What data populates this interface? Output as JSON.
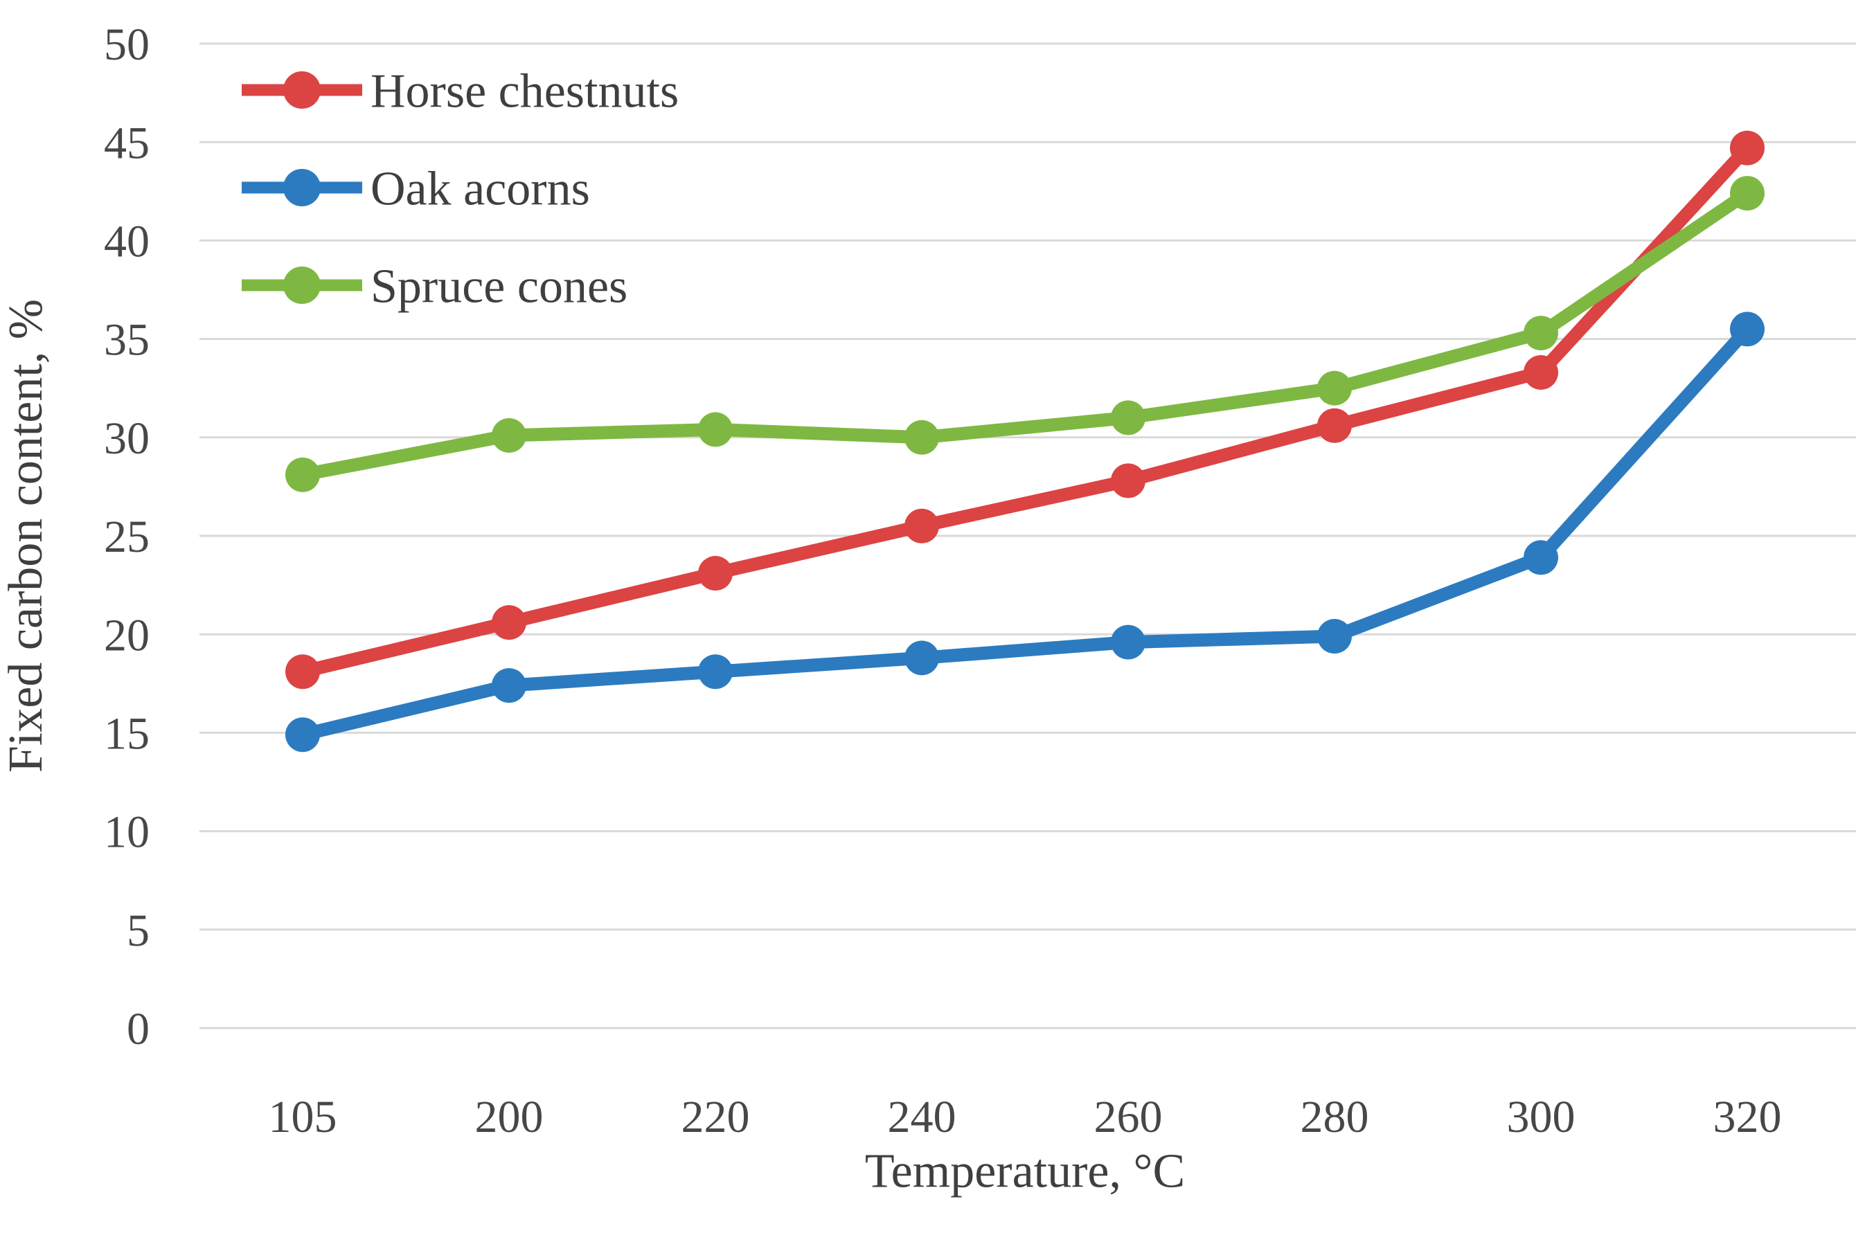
{
  "figure": {
    "background": "#FFFFFF",
    "gridline_color": "#D9D9D9",
    "tick_color": "#474747",
    "text_color": "#3F3F3F"
  },
  "chart_data": {
    "type": "line",
    "title": "",
    "xlabel": "Temperature, °C",
    "ylabel": "Fixed carbon content, %",
    "categories": [
      "105",
      "200",
      "220",
      "240",
      "260",
      "280",
      "300",
      "320"
    ],
    "series": [
      {
        "name": "Horse chestnuts",
        "color": "#DC4343",
        "marker": "circle",
        "values": [
          18.1,
          20.6,
          23.1,
          25.5,
          27.8,
          30.6,
          33.3,
          44.7
        ]
      },
      {
        "name": "Oak acorns",
        "color": "#2C7BC0",
        "marker": "circle",
        "values": [
          14.9,
          17.4,
          18.1,
          18.8,
          19.6,
          19.9,
          23.9,
          35.5
        ]
      },
      {
        "name": "Spruce cones",
        "color": "#7EB842",
        "marker": "circle",
        "values": [
          28.1,
          30.1,
          30.4,
          30.0,
          31.0,
          32.5,
          35.3,
          42.4
        ]
      }
    ],
    "ylim": [
      0,
      50
    ],
    "ytick_step": 5,
    "ytick_labels": [
      "0",
      "5",
      "10",
      "15",
      "20",
      "25",
      "30",
      "35",
      "40",
      "45",
      "50"
    ],
    "grid": true,
    "legend_position": "top-left-inside"
  }
}
